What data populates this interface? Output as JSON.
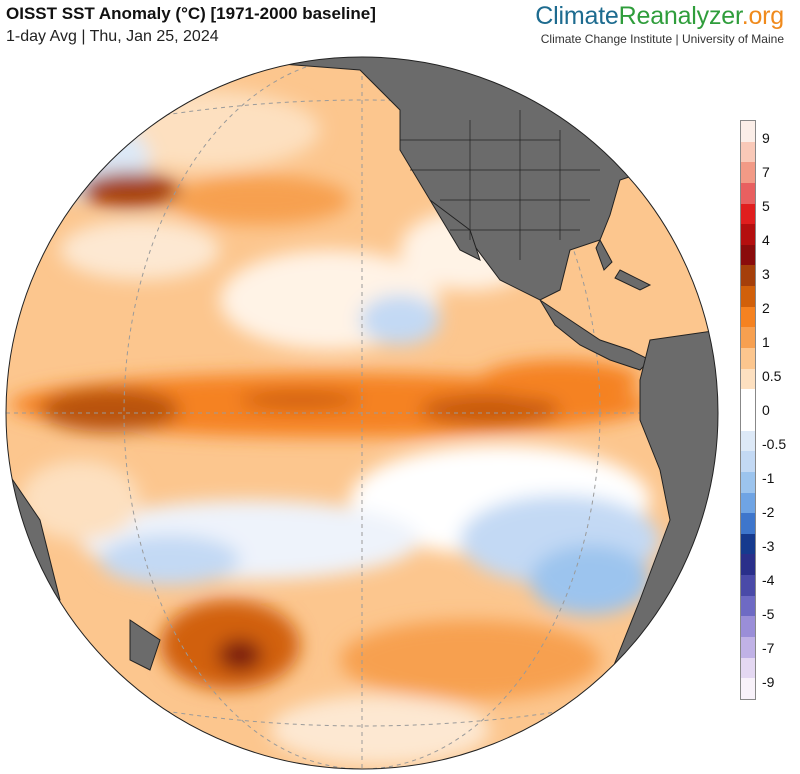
{
  "header": {
    "title": "OISST SST Anomaly (°C) [1971-2000 baseline]",
    "subtitle": "1-day Avg | Thu, Jan 25, 2024"
  },
  "brand": {
    "part1": "Climate",
    "part2": "Reanalyzer",
    "part3": ".org",
    "tagline": "Climate Change Institute | University of Maine"
  },
  "legend": {
    "tick_labels": [
      "9",
      "7",
      "5",
      "4",
      "3",
      "2",
      "1",
      "0.5",
      "0",
      "-0.5",
      "-1",
      "-2",
      "-3",
      "-4",
      "-5",
      "-7",
      "-9"
    ],
    "swatch_colors_top_to_bottom": [
      "#fbeee8",
      "#f9c9b8",
      "#f29a86",
      "#e86060",
      "#e01e1e",
      "#b40f0f",
      "#8a0c0c",
      "#a53f0a",
      "#d1600a",
      "#f58220",
      "#f7a050",
      "#fcc68e",
      "#fde0c0",
      "#ffffff",
      "#ffffff",
      "#dde9f7",
      "#c3d9f4",
      "#9cc4ee",
      "#6fa4e4",
      "#3e76cc",
      "#163a8e",
      "#2a2f8a",
      "#4a4aa8",
      "#6e6ac4",
      "#9a8ed8",
      "#c0b2e6",
      "#e4d8f2",
      "#f8f2fa"
    ]
  },
  "map": {
    "projection": "orthographic",
    "ocean_anomaly_base": "#fde0c0",
    "land_color": "#6b6b6b",
    "regions": [
      "North Pacific",
      "Equatorial Pacific",
      "South Pacific",
      "North America",
      "South America",
      "Central America"
    ]
  }
}
